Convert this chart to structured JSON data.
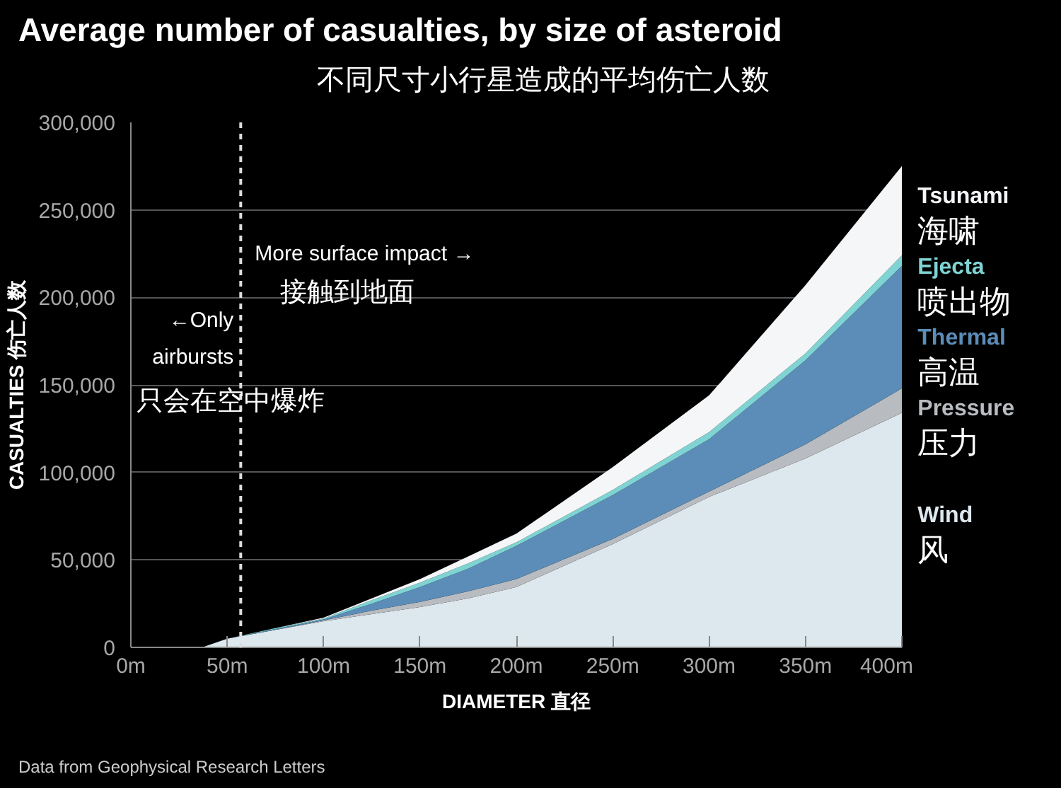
{
  "chart_data": {
    "type": "area",
    "stacked": true,
    "title": "Average number of casualties, by size of asteroid",
    "subtitle": "不同尺寸小行星造成的平均伤亡人数",
    "xlabel": "DIAMETER 直径",
    "ylabel": "CASUALTIES 伤亡人数",
    "x": [
      37,
      50,
      75,
      100,
      125,
      150,
      175,
      200,
      250,
      300,
      350,
      400
    ],
    "series": [
      {
        "name": "Wind\n风",
        "color": "#dde8ee",
        "values": [
          0,
          5000,
          10000,
          15000,
          19000,
          23000,
          28000,
          34500,
          59000,
          86000,
          108000,
          134000
        ]
      },
      {
        "name": "Pressure\n压力",
        "color": "#b8bcc0",
        "values": [
          0,
          0,
          0,
          500,
          2000,
          3000,
          4000,
          4500,
          3000,
          3000,
          8000,
          14000
        ]
      },
      {
        "name": "Thermal\n高温",
        "color": "#5b8db8",
        "values": [
          0,
          0,
          500,
          500,
          4000,
          8500,
          13000,
          19000,
          25000,
          30000,
          48000,
          70000
        ]
      },
      {
        "name": "Ejecta\n喷出物",
        "color": "#7fd3d3",
        "values": [
          0,
          0,
          500,
          500,
          2000,
          2500,
          3000,
          2000,
          3000,
          4000,
          4000,
          6000
        ]
      },
      {
        "name": "Tsunami\n海啸",
        "color": "#f4f6f8",
        "values": [
          0,
          0,
          0,
          500,
          1000,
          2000,
          4000,
          5000,
          13000,
          21000,
          39000,
          51000
        ]
      }
    ],
    "xlim": [
      0,
      400
    ],
    "ylim": [
      0,
      300000
    ],
    "xticks": [
      {
        "value": 0,
        "label": "0m"
      },
      {
        "value": 50,
        "label": "50m"
      },
      {
        "value": 100,
        "label": "100m"
      },
      {
        "value": 150,
        "label": "150m"
      },
      {
        "value": 200,
        "label": "200m"
      },
      {
        "value": 250,
        "label": "250m"
      },
      {
        "value": 300,
        "label": "300m"
      },
      {
        "value": 350,
        "label": "350m"
      },
      {
        "value": 400,
        "label": "400m"
      }
    ],
    "yticks": [
      0,
      {
        "value": 50000,
        "label": "50,000"
      },
      {
        "value": 100000,
        "label": "100,000"
      },
      {
        "value": 150000,
        "label": "150,000"
      },
      {
        "value": 200000,
        "label": "200,000"
      },
      {
        "value": 250000,
        "label": "250,000"
      },
      {
        "value": 300000,
        "label": "300,000"
      }
    ],
    "grid": "y",
    "legend": false,
    "ref_lines": [
      {
        "axis": "x",
        "value": 57,
        "color": "#dddddd",
        "line_style": "dashed"
      }
    ],
    "annotations": [
      "←Only",
      "airbursts",
      "只会在空中爆炸",
      "More surface impact →",
      "接触到地面",
      "Data from Geophysical Research Letters"
    ]
  }
}
